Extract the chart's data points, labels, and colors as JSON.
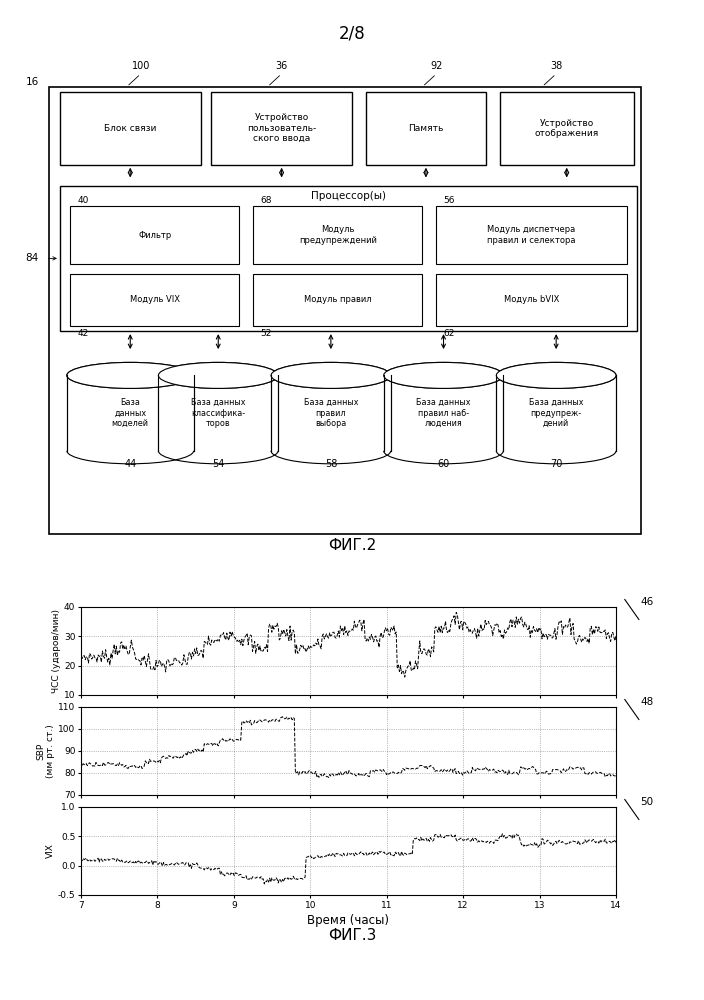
{
  "page_label": "2/8",
  "fig2_label": "ФИГ.2",
  "fig3_label": "ФИГ.3",
  "hr_ylabel": "ЧСС (ударов/мин)",
  "sbp_ylabel": "SBP\n(мм рт. ст.)",
  "vix_ylabel": "VIX",
  "time_xlabel": "Время (часы)",
  "hr_ylim": [
    10,
    40
  ],
  "hr_yticks": [
    10,
    20,
    30,
    40
  ],
  "sbp_ylim": [
    70,
    110
  ],
  "sbp_yticks": [
    70,
    80,
    90,
    100,
    110
  ],
  "vix_ylim": [
    -0.5,
    1.0
  ],
  "vix_yticks": [
    -0.5,
    0.0,
    0.5,
    1.0
  ],
  "xlim": [
    7,
    14
  ],
  "xticks": [
    7,
    8,
    9,
    10,
    11,
    12,
    13,
    14
  ],
  "background_color": "#ffffff"
}
